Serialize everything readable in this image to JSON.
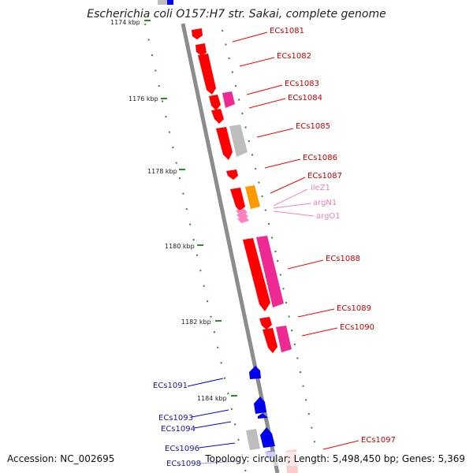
{
  "title": "Escherichia coli O157:H7 str. Sakai, complete genome",
  "accession": "Accession: NC_002695",
  "topology": "Topology: circular; Length: 5,498,450 bp; Genes: 5,369",
  "colors": {
    "backbone": "#8c8c8c",
    "tick": "#2e8b2e",
    "red": "#ff0000",
    "red_label": "#cc0000",
    "pink": "#ee2a92",
    "gray": "#bdbdbd",
    "orange": "#ff9900",
    "trna": "#ff80c0",
    "trna_label": "#ee82b4",
    "blue": "#0000ee",
    "blue_label": "#1a1aa6"
  },
  "kbp_scale": [
    {
      "label": "1174 kbp",
      "kbp": 1174
    },
    {
      "label": "1176 kbp",
      "kbp": 1176
    },
    {
      "label": "1178 kbp",
      "kbp": 1178
    },
    {
      "label": "1180 kbp",
      "kbp": 1180
    },
    {
      "label": "1182 kbp",
      "kbp": 1182
    },
    {
      "label": "1184 kbp",
      "kbp": 1184
    }
  ],
  "genes": [
    {
      "label": "ECs1081",
      "color": "red"
    },
    {
      "label": "ECs1082",
      "color": "red"
    },
    {
      "label": "ECs1083",
      "color": "red"
    },
    {
      "label": "ECs1084",
      "color": "red"
    },
    {
      "label": "ECs1085",
      "color": "red"
    },
    {
      "label": "ECs1086",
      "color": "red"
    },
    {
      "label": "ECs1087",
      "color": "red"
    },
    {
      "label": "ileZ1",
      "color": "trna"
    },
    {
      "label": "argN1",
      "color": "trna"
    },
    {
      "label": "argO1",
      "color": "trna"
    },
    {
      "label": "ECs1088",
      "color": "red"
    },
    {
      "label": "ECs1089",
      "color": "red"
    },
    {
      "label": "ECs1090",
      "color": "red"
    },
    {
      "label": "ECs1091",
      "color": "blue"
    },
    {
      "label": "ECs1093",
      "color": "blue"
    },
    {
      "label": "ECs1094",
      "color": "blue"
    },
    {
      "label": "ECs1096",
      "color": "blue"
    },
    {
      "label": "ECs1098",
      "color": "blue"
    },
    {
      "label": "ECs1097",
      "color": "red"
    }
  ]
}
